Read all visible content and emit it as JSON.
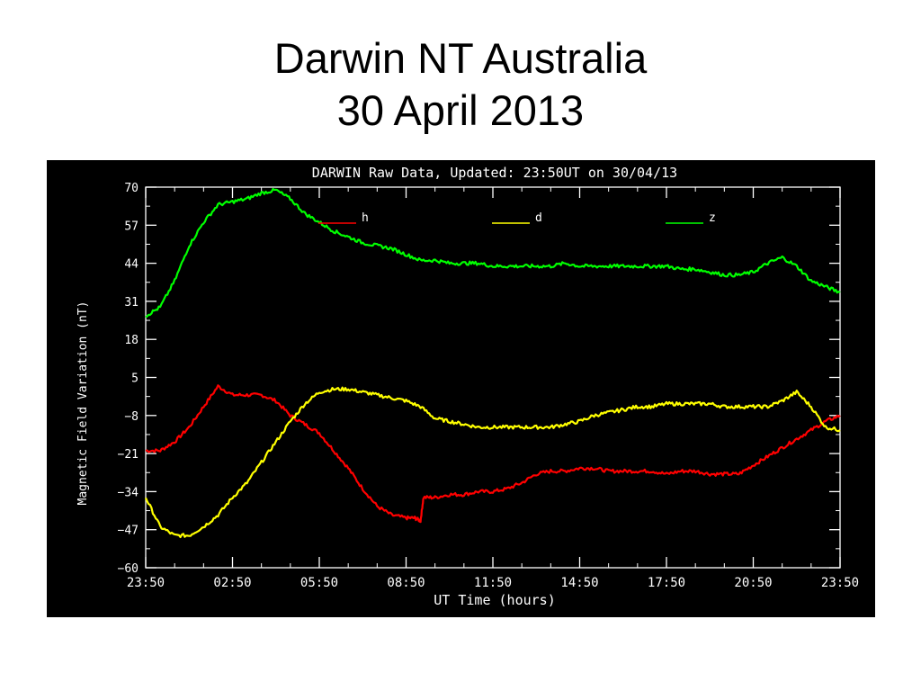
{
  "slide": {
    "title_line1": "Darwin NT Australia",
    "title_line2": "30 April 2013"
  },
  "chart_data": {
    "type": "line",
    "title": "DARWIN Raw Data, Updated: 23:50UT on 30/04/13",
    "xlabel": "UT Time (hours)",
    "ylabel": "Magnetic Field Variation (nT)",
    "x_tick_labels": [
      "23:50",
      "02:50",
      "05:50",
      "08:50",
      "11:50",
      "14:50",
      "17:50",
      "20:50",
      "23:50"
    ],
    "y_tick_labels": [
      "70",
      "57",
      "44",
      "31",
      "18",
      "5",
      "−8",
      "−21",
      "−34",
      "−47",
      "−60"
    ],
    "x_unit": "hours after 23:50 UT",
    "xlim": [
      0,
      24
    ],
    "ylim": [
      -60,
      70
    ],
    "background": "#000000",
    "grid": false,
    "legend_position": "top, inside plot",
    "series": [
      {
        "name": "h",
        "color": "#ff0000",
        "x": [
          0,
          0.5,
          1,
          1.5,
          2,
          2.5,
          3,
          3.5,
          4,
          4.5,
          5,
          5.5,
          6,
          6.5,
          7,
          7.5,
          8,
          8.5,
          9,
          9.3,
          9.5,
          9.6,
          10,
          10.5,
          11,
          11.5,
          12,
          12.5,
          13,
          13.5,
          14,
          14.5,
          15,
          15.5,
          16,
          16.5,
          17,
          17.5,
          18,
          18.5,
          19,
          19.5,
          20,
          20.5,
          21,
          21.5,
          22,
          22.5,
          23,
          23.5,
          24
        ],
        "values": [
          -20,
          -20,
          -17,
          -12,
          -5,
          2,
          -1,
          -1,
          -1,
          -3,
          -8,
          -11,
          -14,
          -20,
          -26,
          -33,
          -39,
          -42,
          -43,
          -43,
          -44,
          -36,
          -36,
          -35,
          -35,
          -34,
          -34,
          -33,
          -31,
          -28,
          -27,
          -27,
          -26,
          -26,
          -27,
          -27,
          -27,
          -27,
          -28,
          -27,
          -27,
          -28,
          -28,
          -28,
          -25,
          -22,
          -19,
          -16,
          -13,
          -10,
          -8
        ]
      },
      {
        "name": "d",
        "color": "#ffff00",
        "x": [
          0,
          0.5,
          1,
          1.5,
          2,
          2.5,
          3,
          3.5,
          4,
          4.5,
          5,
          5.5,
          6,
          6.5,
          7,
          7.5,
          8,
          8.5,
          9,
          9.5,
          10,
          10.5,
          11,
          11.5,
          12,
          12.5,
          13,
          13.5,
          14,
          14.5,
          15,
          15.5,
          16,
          16.5,
          17,
          17.5,
          18,
          18.5,
          19,
          19.5,
          20,
          20.5,
          21,
          21.5,
          22,
          22.5,
          23,
          23.5,
          24
        ],
        "values": [
          -36,
          -46,
          -49,
          -49,
          -46,
          -42,
          -36,
          -31,
          -24,
          -17,
          -10,
          -4,
          0,
          1,
          1,
          0,
          -1,
          -2,
          -3,
          -5,
          -9,
          -10,
          -11,
          -12,
          -12,
          -12,
          -12,
          -12,
          -12,
          -11,
          -10,
          -8,
          -7,
          -6,
          -5,
          -5,
          -4,
          -4,
          -4,
          -4,
          -5,
          -5,
          -5,
          -5,
          -3,
          0,
          -5,
          -12,
          -13
        ]
      },
      {
        "name": "z",
        "color": "#00ff00",
        "x": [
          0,
          0.5,
          1,
          1.5,
          2,
          2.5,
          3,
          3.5,
          4,
          4.5,
          5,
          5.5,
          6,
          6.5,
          7,
          7.5,
          8,
          8.5,
          9,
          9.5,
          10,
          10.5,
          11,
          11.5,
          12,
          12.5,
          13,
          13.5,
          14,
          14.5,
          15,
          15.5,
          16,
          16.5,
          17,
          17.5,
          18,
          18.5,
          19,
          19.5,
          20,
          20.5,
          21,
          21.5,
          22,
          22.5,
          23,
          23.5,
          24
        ],
        "values": [
          26,
          29,
          38,
          50,
          58,
          64,
          65,
          66,
          68,
          69,
          66,
          61,
          58,
          55,
          53,
          51,
          50,
          49,
          47,
          45,
          45,
          44,
          44,
          44,
          43,
          43,
          43,
          43,
          43,
          44,
          43,
          43,
          43,
          43,
          43,
          43,
          43,
          42,
          42,
          41,
          40,
          40,
          41,
          44,
          46,
          43,
          38,
          36,
          34
        ]
      }
    ]
  }
}
